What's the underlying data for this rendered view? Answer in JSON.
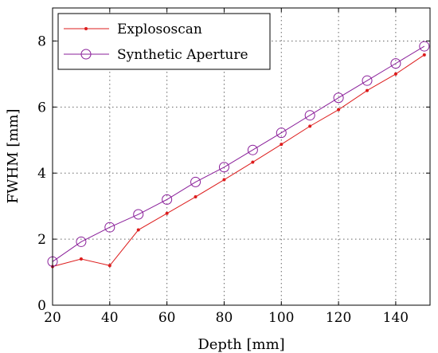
{
  "chart_data": {
    "type": "line",
    "title": "",
    "xlabel": "Depth [mm]",
    "ylabel": "FWHM [mm]",
    "xlim": [
      20,
      152
    ],
    "ylim": [
      0,
      9
    ],
    "xticks": [
      20,
      40,
      60,
      80,
      100,
      120,
      140
    ],
    "yticks": [
      0,
      2,
      4,
      6,
      8
    ],
    "grid": true,
    "legend_position": "top-left",
    "x": [
      20,
      30,
      40,
      50,
      60,
      70,
      80,
      90,
      100,
      110,
      120,
      130,
      140,
      150
    ],
    "series": [
      {
        "name": "Explososcan",
        "color": "#dd1c1c",
        "marker": "dot",
        "values": [
          1.17,
          1.4,
          1.2,
          2.28,
          2.78,
          3.28,
          3.8,
          4.33,
          4.87,
          5.42,
          5.92,
          6.5,
          7.0,
          7.58
        ]
      },
      {
        "name": "Synthetic Aperture",
        "color": "#8a1f9a",
        "marker": "circle",
        "values": [
          1.32,
          1.92,
          2.36,
          2.75,
          3.2,
          3.73,
          4.18,
          4.7,
          5.22,
          5.75,
          6.28,
          6.8,
          7.32,
          7.84
        ]
      }
    ]
  }
}
